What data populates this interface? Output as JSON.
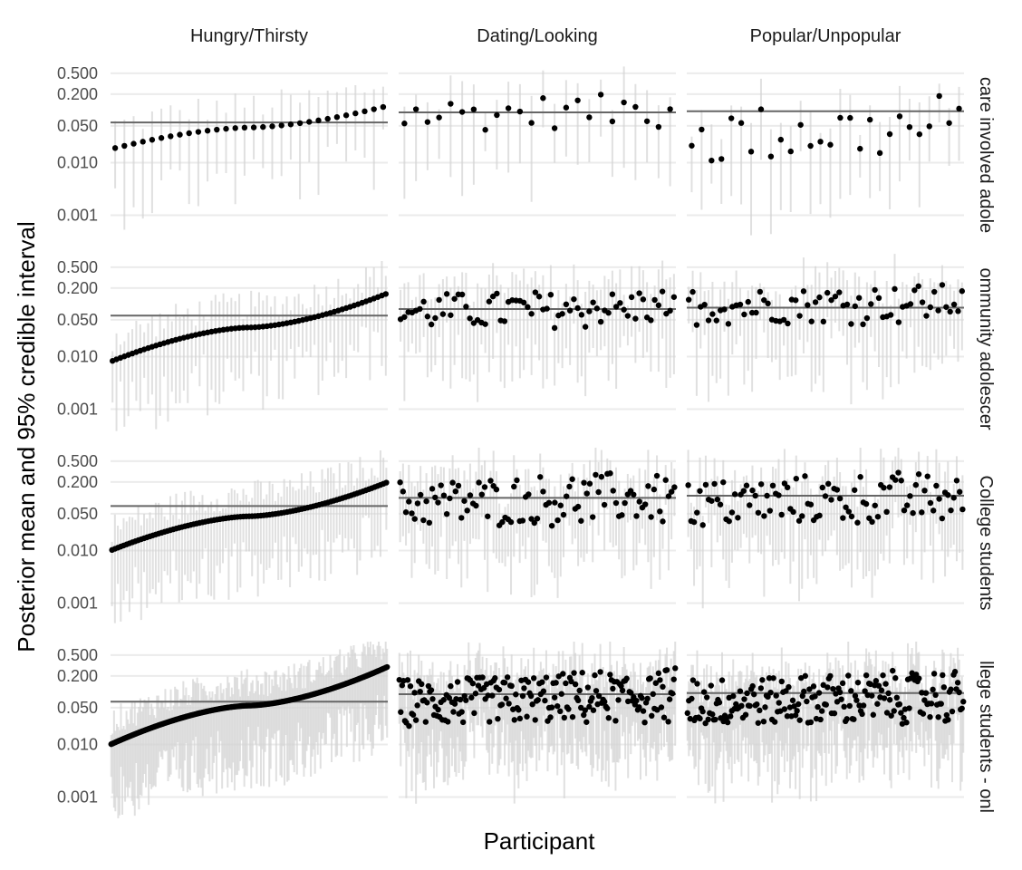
{
  "chart_data": {
    "type": "scatter",
    "title": "",
    "xlabel": "Participant",
    "ylabel": "Posterior mean and 95% credible interval",
    "y_scale": "log10",
    "ylim": [
      0.00035,
      0.9
    ],
    "y_ticks": [
      0.001,
      0.01,
      0.05,
      0.2,
      0.5
    ],
    "y_tick_labels": [
      "0.001",
      "0.010",
      "0.050",
      "0.200",
      "0.500"
    ],
    "grid": true,
    "columns": [
      "Hungry/Thirsty",
      "Dating/Looking",
      "Popular/Unpopular"
    ],
    "rows": [
      "care involved adole",
      "ommunity adolescer",
      "College students",
      "llege students - onl"
    ],
    "ordered_column": "Hungry/Thirsty",
    "panels": [
      {
        "row": 0,
        "col": 0,
        "reference": 0.058,
        "n": 30,
        "range": [
          0.018,
          0.12
        ]
      },
      {
        "row": 0,
        "col": 1,
        "reference": 0.09,
        "n": 24,
        "range": [
          0.025,
          0.26
        ]
      },
      {
        "row": 0,
        "col": 2,
        "reference": 0.095,
        "n": 28,
        "range": [
          0.004,
          0.25
        ]
      },
      {
        "row": 1,
        "col": 0,
        "reference": 0.06,
        "n": 70,
        "range": [
          0.008,
          0.16
        ]
      },
      {
        "row": 1,
        "col": 1,
        "reference": 0.08,
        "n": 72,
        "range": [
          0.02,
          0.25
        ]
      },
      {
        "row": 1,
        "col": 2,
        "reference": 0.085,
        "n": 70,
        "range": [
          0.025,
          0.32
        ]
      },
      {
        "row": 2,
        "col": 0,
        "reference": 0.07,
        "n": 95,
        "range": [
          0.01,
          0.2
        ]
      },
      {
        "row": 2,
        "col": 1,
        "reference": 0.1,
        "n": 95,
        "range": [
          0.015,
          0.4
        ]
      },
      {
        "row": 2,
        "col": 2,
        "reference": 0.11,
        "n": 95,
        "range": [
          0.015,
          0.4
        ]
      },
      {
        "row": 3,
        "col": 0,
        "reference": 0.065,
        "n": 200,
        "range": [
          0.01,
          0.3
        ]
      },
      {
        "row": 3,
        "col": 1,
        "reference": 0.09,
        "n": 200,
        "range": [
          0.012,
          0.32
        ]
      },
      {
        "row": 3,
        "col": 2,
        "reference": 0.095,
        "n": 200,
        "range": [
          0.012,
          0.32
        ]
      }
    ]
  }
}
